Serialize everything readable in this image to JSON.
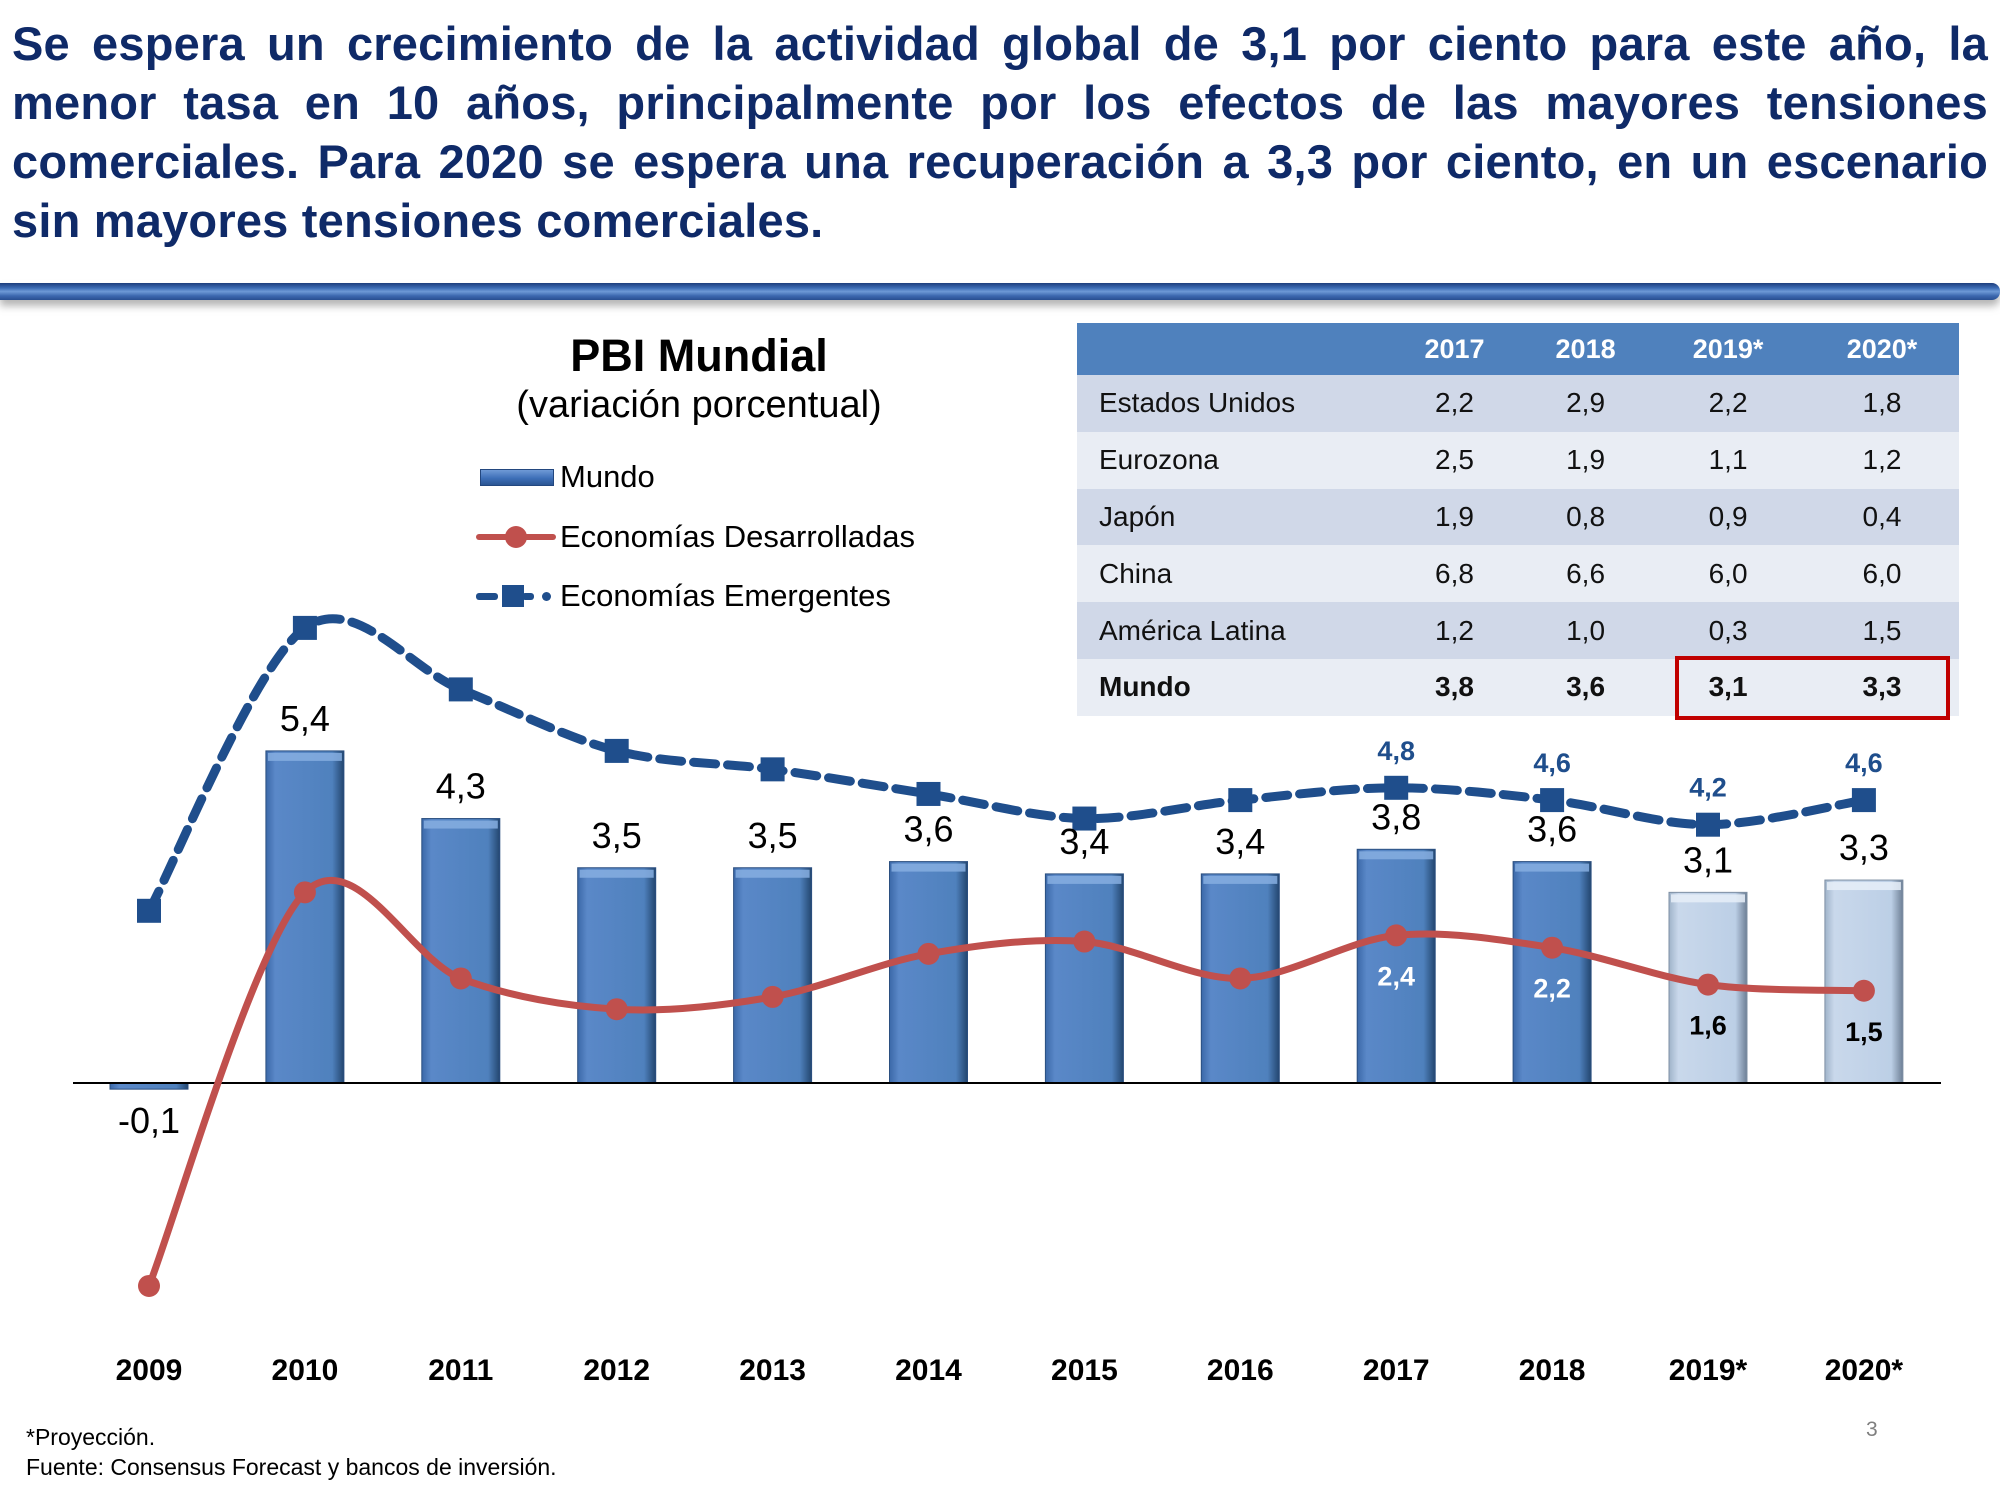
{
  "headline": "Se espera un crecimiento de la actividad global de 3,1 por ciento para este año, la menor tasa en 10 años, principalmente por los efectos de las mayores tensiones comerciales. Para 2020 se espera una recuperación a 3,3 por ciento, en un escenario sin mayores tensiones comerciales.",
  "colors": {
    "headline": "#0f2a68",
    "bar_actual": "#4f81bd",
    "bar_projection": "#c6d9f1",
    "developed": "#c0504d",
    "emerging": "#1f4e8c",
    "table_header": "#4f81bd",
    "highlight": "#c00000"
  },
  "chart_data": {
    "type": "bar",
    "title": "PBI Mundial",
    "subtitle": "(variación porcentual)",
    "xlabel": "",
    "ylabel": "",
    "ylim": [
      -3.5,
      8
    ],
    "grid": false,
    "legend_position": "top-left",
    "categories": [
      "2009",
      "2010",
      "2011",
      "2012",
      "2013",
      "2014",
      "2015",
      "2016",
      "2017",
      "2018",
      "2019*",
      "2020*"
    ],
    "projection_categories": [
      "2019*",
      "2020*"
    ],
    "series": [
      {
        "name": "Mundo",
        "type": "bar",
        "values": [
          -0.1,
          5.4,
          4.3,
          3.5,
          3.5,
          3.6,
          3.4,
          3.4,
          3.8,
          3.6,
          3.1,
          3.3
        ],
        "labels": [
          "-0,1",
          "5,4",
          "4,3",
          "3,5",
          "3,5",
          "3,6",
          "3,4",
          "3,4",
          "3,8",
          "3,6",
          "3,1",
          "3,3"
        ]
      },
      {
        "name": "Economías Desarrolladas",
        "type": "line",
        "style": "solid-circle",
        "values": [
          -3.3,
          3.1,
          1.7,
          1.2,
          1.4,
          2.1,
          2.3,
          1.7,
          2.4,
          2.2,
          1.6,
          1.5
        ],
        "labels": [
          null,
          null,
          null,
          null,
          null,
          null,
          null,
          null,
          "2,4",
          "2,2",
          "1,6",
          "1,5"
        ]
      },
      {
        "name": "Economías Emergentes",
        "type": "line",
        "style": "dashed-square",
        "values": [
          2.8,
          7.4,
          6.4,
          5.4,
          5.1,
          4.7,
          4.3,
          4.6,
          4.8,
          4.6,
          4.2,
          4.6
        ],
        "labels": [
          null,
          null,
          null,
          null,
          null,
          null,
          null,
          null,
          "4,8",
          "4,6",
          "4,2",
          "4,6"
        ]
      }
    ]
  },
  "table": {
    "headers": [
      "",
      "2017",
      "2018",
      "2019*",
      "2020*"
    ],
    "rows": [
      {
        "country": "Estados Unidos",
        "values": [
          "2,2",
          "2,9",
          "2,2",
          "1,8"
        ]
      },
      {
        "country": "Eurozona",
        "values": [
          "2,5",
          "1,9",
          "1,1",
          "1,2"
        ]
      },
      {
        "country": "Japón",
        "values": [
          "1,9",
          "0,8",
          "0,9",
          "0,4"
        ]
      },
      {
        "country": "China",
        "values": [
          "6,8",
          "6,6",
          "6,0",
          "6,0"
        ]
      },
      {
        "country": "América Latina",
        "values": [
          "1,2",
          "1,0",
          "0,3",
          "1,5"
        ]
      },
      {
        "country": "Mundo",
        "values": [
          "3,8",
          "3,6",
          "3,1",
          "3,3"
        ]
      }
    ],
    "highlighted": {
      "row": "Mundo",
      "columns": [
        "2019*",
        "2020*"
      ]
    }
  },
  "footer": {
    "note": "*Proyección.",
    "source": "Fuente: Consensus Forecast y bancos de inversión.",
    "page_number": "3"
  }
}
